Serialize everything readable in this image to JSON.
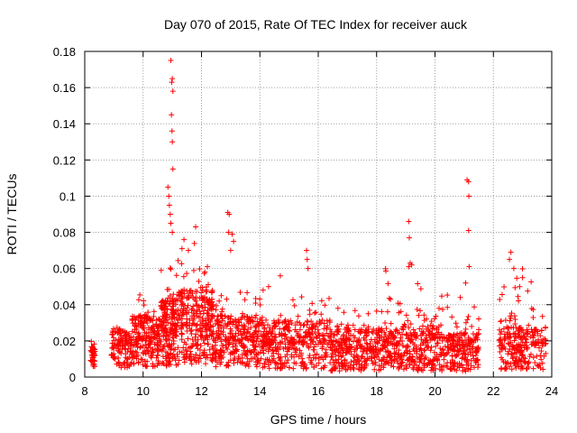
{
  "chart_data": {
    "type": "scatter",
    "title": "Day 070 of 2015, Rate Of TEC Index for receiver auck",
    "xlabel": "GPS time / hours",
    "ylabel": "ROTI / TECUs",
    "xlim": [
      8,
      24
    ],
    "ylim": [
      0,
      0.18
    ],
    "x_ticks": [
      "8",
      "10",
      "12",
      "14",
      "16",
      "18",
      "20",
      "22",
      "24"
    ],
    "y_ticks": [
      "0",
      "0.02",
      "0.04",
      "0.06",
      "0.08",
      "0.1",
      "0.12",
      "0.14",
      "0.16",
      "0.18"
    ],
    "grid": true,
    "marker": "plus",
    "color": "#ff0000",
    "series": [
      {
        "name": "ROTI",
        "segments": [
          {
            "x": [
              8.2,
              8.35
            ],
            "y": [
              0.005,
              0.025
            ],
            "base": 0.012,
            "n": 40
          },
          {
            "x": [
              8.9,
              9.6
            ],
            "y": [
              0.004,
              0.032
            ],
            "base": 0.016,
            "n": 120
          },
          {
            "x": [
              9.6,
              10.6
            ],
            "y": [
              0.004,
              0.05
            ],
            "base": 0.02,
            "n": 220
          },
          {
            "x": [
              10.6,
              11.2
            ],
            "y": [
              0.004,
              0.08
            ],
            "base": 0.025,
            "n": 200
          },
          {
            "x": [
              11.2,
              12.4
            ],
            "y": [
              0.005,
              0.082
            ],
            "base": 0.028,
            "n": 300
          },
          {
            "x": [
              12.4,
              14.0
            ],
            "y": [
              0.004,
              0.06
            ],
            "base": 0.02,
            "n": 300
          },
          {
            "x": [
              14.0,
              16.4
            ],
            "y": [
              0.003,
              0.05
            ],
            "base": 0.018,
            "n": 380
          },
          {
            "x": [
              16.4,
              18.2
            ],
            "y": [
              0.002,
              0.042
            ],
            "base": 0.015,
            "n": 320
          },
          {
            "x": [
              18.2,
              20.2
            ],
            "y": [
              0.002,
              0.062
            ],
            "base": 0.016,
            "n": 330
          },
          {
            "x": [
              20.2,
              21.5
            ],
            "y": [
              0.002,
              0.052
            ],
            "base": 0.014,
            "n": 220
          },
          {
            "x": [
              22.2,
              23.8
            ],
            "y": [
              0.003,
              0.068
            ],
            "base": 0.016,
            "n": 260
          }
        ],
        "highlights": [
          {
            "x": 10.95,
            "y": 0.175
          },
          {
            "x": 11.0,
            "y": 0.165
          },
          {
            "x": 10.98,
            "y": 0.163
          },
          {
            "x": 11.02,
            "y": 0.158
          },
          {
            "x": 10.97,
            "y": 0.145
          },
          {
            "x": 10.99,
            "y": 0.136
          },
          {
            "x": 11.0,
            "y": 0.13
          },
          {
            "x": 11.02,
            "y": 0.115
          },
          {
            "x": 10.85,
            "y": 0.105
          },
          {
            "x": 10.88,
            "y": 0.1
          },
          {
            "x": 10.9,
            "y": 0.095
          },
          {
            "x": 10.93,
            "y": 0.09
          },
          {
            "x": 10.95,
            "y": 0.085
          },
          {
            "x": 11.0,
            "y": 0.08
          },
          {
            "x": 12.9,
            "y": 0.091
          },
          {
            "x": 12.95,
            "y": 0.09
          },
          {
            "x": 12.93,
            "y": 0.08
          },
          {
            "x": 13.05,
            "y": 0.079
          },
          {
            "x": 13.1,
            "y": 0.075
          },
          {
            "x": 13.0,
            "y": 0.07
          },
          {
            "x": 19.1,
            "y": 0.086
          },
          {
            "x": 19.12,
            "y": 0.077
          },
          {
            "x": 19.15,
            "y": 0.063
          },
          {
            "x": 19.1,
            "y": 0.061
          },
          {
            "x": 19.2,
            "y": 0.062
          },
          {
            "x": 21.1,
            "y": 0.109
          },
          {
            "x": 21.15,
            "y": 0.108
          },
          {
            "x": 21.16,
            "y": 0.1
          },
          {
            "x": 21.15,
            "y": 0.081
          },
          {
            "x": 21.17,
            "y": 0.061
          },
          {
            "x": 21.05,
            "y": 0.052
          },
          {
            "x": 22.6,
            "y": 0.069
          },
          {
            "x": 22.55,
            "y": 0.065
          },
          {
            "x": 22.7,
            "y": 0.06
          },
          {
            "x": 23.0,
            "y": 0.055
          },
          {
            "x": 22.9,
            "y": 0.05
          },
          {
            "x": 15.6,
            "y": 0.07
          },
          {
            "x": 15.62,
            "y": 0.065
          },
          {
            "x": 15.65,
            "y": 0.06
          },
          {
            "x": 14.7,
            "y": 0.056
          },
          {
            "x": 14.3,
            "y": 0.05
          },
          {
            "x": 11.4,
            "y": 0.076
          },
          {
            "x": 11.8,
            "y": 0.083
          },
          {
            "x": 11.55,
            "y": 0.07
          }
        ]
      }
    ]
  }
}
